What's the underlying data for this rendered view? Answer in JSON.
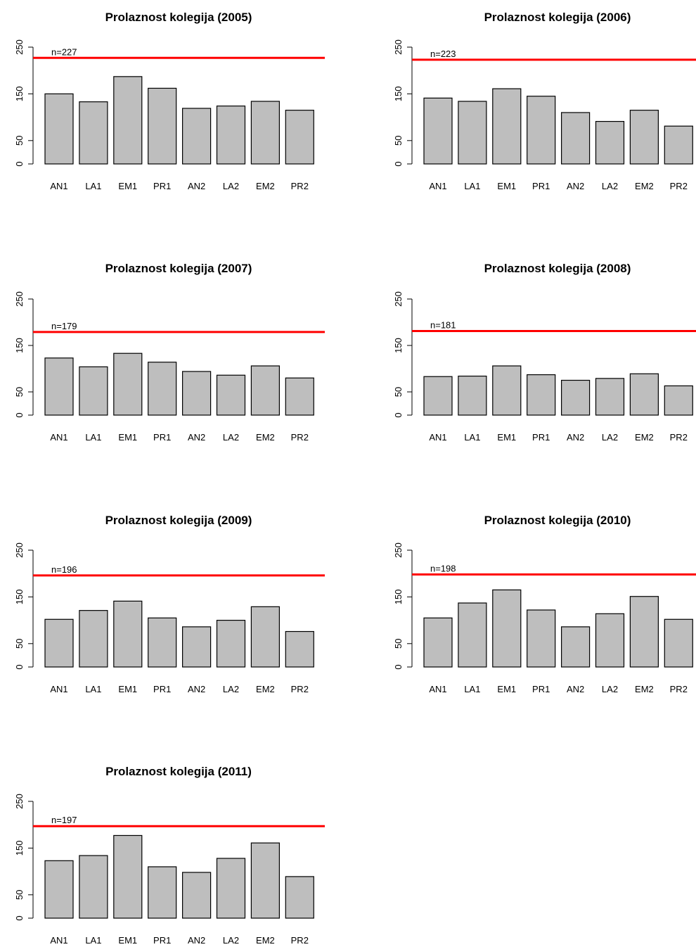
{
  "chart_data": [
    {
      "type": "bar",
      "title": "Prolaznost kolegija (2005)",
      "categories": [
        "AN1",
        "LA1",
        "EM1",
        "PR1",
        "AN2",
        "LA2",
        "EM2",
        "PR2"
      ],
      "values": [
        150,
        133,
        187,
        162,
        119,
        124,
        134,
        115
      ],
      "ylim": [
        0,
        250
      ],
      "yticks": [
        "0",
        "50",
        "150",
        "250"
      ],
      "hline": {
        "value": 227,
        "label": "n=227",
        "color": "#ff0000"
      },
      "bar_color": "#bebebe"
    },
    {
      "type": "bar",
      "title": "Prolaznost kolegija (2006)",
      "categories": [
        "AN1",
        "LA1",
        "EM1",
        "PR1",
        "AN2",
        "LA2",
        "EM2",
        "PR2"
      ],
      "values": [
        141,
        134,
        161,
        145,
        110,
        91,
        115,
        81
      ],
      "ylim": [
        0,
        250
      ],
      "yticks": [
        "0",
        "50",
        "150",
        "250"
      ],
      "hline": {
        "value": 223,
        "label": "n=223",
        "color": "#ff0000"
      },
      "bar_color": "#bebebe"
    },
    {
      "type": "bar",
      "title": "Prolaznost kolegija (2007)",
      "categories": [
        "AN1",
        "LA1",
        "EM1",
        "PR1",
        "AN2",
        "LA2",
        "EM2",
        "PR2"
      ],
      "values": [
        123,
        104,
        133,
        114,
        94,
        86,
        106,
        80
      ],
      "ylim": [
        0,
        250
      ],
      "yticks": [
        "0",
        "50",
        "150",
        "250"
      ],
      "hline": {
        "value": 179,
        "label": "n=179",
        "color": "#ff0000"
      },
      "bar_color": "#bebebe"
    },
    {
      "type": "bar",
      "title": "Prolaznost kolegija (2008)",
      "categories": [
        "AN1",
        "LA1",
        "EM1",
        "PR1",
        "AN2",
        "LA2",
        "EM2",
        "PR2"
      ],
      "values": [
        83,
        84,
        106,
        87,
        75,
        79,
        89,
        63
      ],
      "ylim": [
        0,
        250
      ],
      "yticks": [
        "0",
        "50",
        "150",
        "250"
      ],
      "hline": {
        "value": 181,
        "label": "n=181",
        "color": "#ff0000"
      },
      "bar_color": "#bebebe"
    },
    {
      "type": "bar",
      "title": "Prolaznost kolegija (2009)",
      "categories": [
        "AN1",
        "LA1",
        "EM1",
        "PR1",
        "AN2",
        "LA2",
        "EM2",
        "PR2"
      ],
      "values": [
        102,
        121,
        141,
        105,
        86,
        100,
        129,
        76
      ],
      "ylim": [
        0,
        250
      ],
      "yticks": [
        "0",
        "50",
        "150",
        "250"
      ],
      "hline": {
        "value": 196,
        "label": "n=196",
        "color": "#ff0000"
      },
      "bar_color": "#bebebe"
    },
    {
      "type": "bar",
      "title": "Prolaznost kolegija (2010)",
      "categories": [
        "AN1",
        "LA1",
        "EM1",
        "PR1",
        "AN2",
        "LA2",
        "EM2",
        "PR2"
      ],
      "values": [
        105,
        137,
        165,
        122,
        86,
        114,
        151,
        102
      ],
      "ylim": [
        0,
        250
      ],
      "yticks": [
        "0",
        "50",
        "150",
        "250"
      ],
      "hline": {
        "value": 198,
        "label": "n=198",
        "color": "#ff0000"
      },
      "bar_color": "#bebebe"
    },
    {
      "type": "bar",
      "title": "Prolaznost kolegija (2011)",
      "categories": [
        "AN1",
        "LA1",
        "EM1",
        "PR1",
        "AN2",
        "LA2",
        "EM2",
        "PR2"
      ],
      "values": [
        123,
        134,
        177,
        110,
        98,
        128,
        161,
        89
      ],
      "ylim": [
        0,
        250
      ],
      "yticks": [
        "0",
        "50",
        "150",
        "250"
      ],
      "hline": {
        "value": 197,
        "label": "n=197",
        "color": "#ff0000"
      },
      "bar_color": "#bebebe"
    }
  ]
}
